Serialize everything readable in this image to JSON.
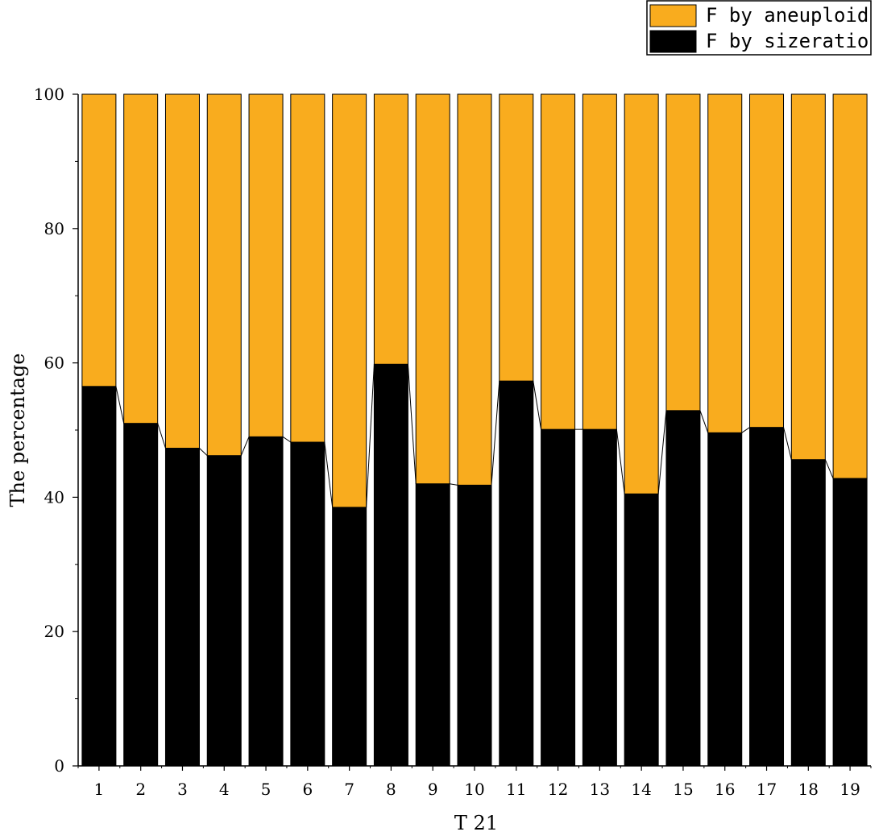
{
  "chart_data": {
    "type": "bar",
    "stacked": true,
    "title": "",
    "xlabel": "T 21",
    "ylabel": "The percentage",
    "ylim": [
      0,
      100
    ],
    "yticks": [
      0,
      20,
      40,
      60,
      80,
      100
    ],
    "categories": [
      "1",
      "2",
      "3",
      "4",
      "5",
      "6",
      "7",
      "8",
      "9",
      "10",
      "11",
      "12",
      "13",
      "14",
      "15",
      "16",
      "17",
      "18",
      "19"
    ],
    "series": [
      {
        "name": "F by sizeratio",
        "color": "#000000",
        "values": [
          56.5,
          51.0,
          47.3,
          46.2,
          49.0,
          48.2,
          38.5,
          59.8,
          42.0,
          41.8,
          57.3,
          50.1,
          50.1,
          40.5,
          52.9,
          49.6,
          50.4,
          45.6,
          42.8
        ]
      },
      {
        "name": "F by aneuploid",
        "color": "#F9AC1E",
        "values": [
          43.5,
          49.0,
          52.7,
          53.8,
          51.0,
          51.8,
          61.5,
          40.2,
          58.0,
          58.2,
          42.7,
          49.9,
          49.9,
          59.5,
          47.1,
          50.4,
          49.6,
          54.4,
          57.2
        ]
      }
    ],
    "legend": {
      "position": "top-right",
      "order": [
        "F by aneuploid",
        "F by sizeratio"
      ]
    },
    "connector_lines": true
  }
}
